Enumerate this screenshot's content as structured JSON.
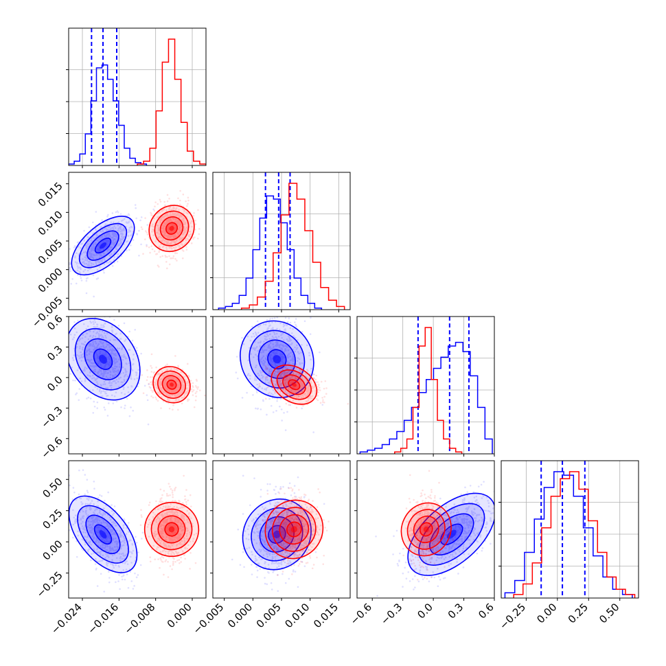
{
  "colors": {
    "series_a": "#0000ff",
    "series_b": "#ff0000",
    "grid": "#b0b0b0",
    "axis": "#000000"
  },
  "chart_data": {
    "type": "corner",
    "grid": true,
    "parameters": [
      {
        "range": [
          -0.027,
          0.003
        ],
        "ticks": [
          -0.024,
          -0.016,
          -0.008,
          0.0
        ],
        "tick_labels": [
          "−0.024",
          "−0.016",
          "−0.008",
          "0.000"
        ]
      },
      {
        "range": [
          -0.007,
          0.017
        ],
        "ticks": [
          -0.005,
          0.0,
          0.005,
          0.01,
          0.015
        ],
        "tick_labels": [
          "−0.005",
          "0.000",
          "0.005",
          "0.010",
          "0.015"
        ]
      },
      {
        "range": [
          -0.75,
          0.6
        ],
        "ticks": [
          -0.6,
          -0.3,
          0.0,
          0.3,
          0.6
        ],
        "tick_labels": [
          "−0.6",
          "−0.3",
          "0.0",
          "0.3",
          "0.6"
        ]
      },
      {
        "range": [
          -0.45,
          0.65
        ],
        "ticks": [
          -0.25,
          0.0,
          0.25,
          0.5
        ],
        "tick_labels": [
          "−0.25",
          "0.00",
          "0.25",
          "0.50"
        ]
      }
    ],
    "series": [
      {
        "color": "#0000ff",
        "mean": [
          -0.0195,
          0.0042,
          0.18,
          0.06
        ],
        "sd": [
          0.0035,
          0.0025,
          0.22,
          0.16
        ],
        "quantile_lines": [
          [
            -0.022,
            -0.0195,
            -0.0165
          ],
          [
            0.0022,
            0.0045,
            0.0065
          ],
          [
            -0.15,
            0.16,
            0.35
          ],
          [
            -0.13,
            0.04,
            0.22
          ]
        ],
        "histograms": [
          [
            1,
            3,
            8,
            22,
            45,
            68,
            70,
            60,
            45,
            28,
            12,
            5,
            2,
            1
          ],
          [
            1,
            2,
            4,
            9,
            20,
            38,
            58,
            72,
            70,
            55,
            38,
            20,
            9,
            4,
            1
          ],
          [
            1,
            2,
            3,
            5,
            8,
            12,
            18,
            25,
            33,
            40,
            46,
            52,
            58,
            60,
            55,
            42,
            25,
            8
          ],
          [
            3,
            10,
            26,
            45,
            63,
            72,
            70,
            58,
            40,
            24,
            12,
            5,
            2
          ]
        ],
        "hist_ranges": [
          [
            -0.027,
            -0.01
          ],
          [
            -0.006,
            0.012
          ],
          [
            -0.72,
            0.58
          ],
          [
            -0.42,
            0.6
          ]
        ],
        "correlations": [
          [
            1,
            0.6,
            -0.3,
            -0.55
          ],
          [
            0.6,
            1,
            -0.1,
            0.1
          ],
          [
            -0.3,
            -0.1,
            1,
            0.55
          ],
          [
            -0.55,
            0.1,
            0.55,
            1
          ]
        ]
      },
      {
        "color": "#ff0000",
        "mean": [
          -0.0045,
          0.0072,
          -0.07,
          0.1
        ],
        "sd": [
          0.0022,
          0.0022,
          0.08,
          0.13
        ],
        "quantile_lines": [],
        "histograms": [
          [
            1,
            3,
            12,
            38,
            72,
            88,
            60,
            30,
            10,
            3,
            1
          ],
          [
            1,
            3,
            8,
            18,
            36,
            60,
            80,
            70,
            50,
            30,
            14,
            6,
            2
          ],
          [
            1,
            3,
            8,
            25,
            58,
            68,
            40,
            18,
            8,
            3,
            1
          ],
          [
            2,
            8,
            20,
            40,
            58,
            68,
            72,
            62,
            44,
            26,
            12,
            5,
            2
          ]
        ],
        "hist_ranges": [
          [
            -0.012,
            0.003
          ],
          [
            -0.002,
            0.016
          ],
          [
            -0.38,
            0.28
          ],
          [
            -0.35,
            0.62
          ]
        ],
        "correlations": [
          [
            1,
            0.1,
            -0.1,
            0.0
          ],
          [
            0.1,
            1,
            -0.35,
            0.05
          ],
          [
            -0.1,
            -0.35,
            1,
            0.1
          ],
          [
            0.0,
            0.05,
            0.1,
            1
          ]
        ]
      }
    ]
  }
}
